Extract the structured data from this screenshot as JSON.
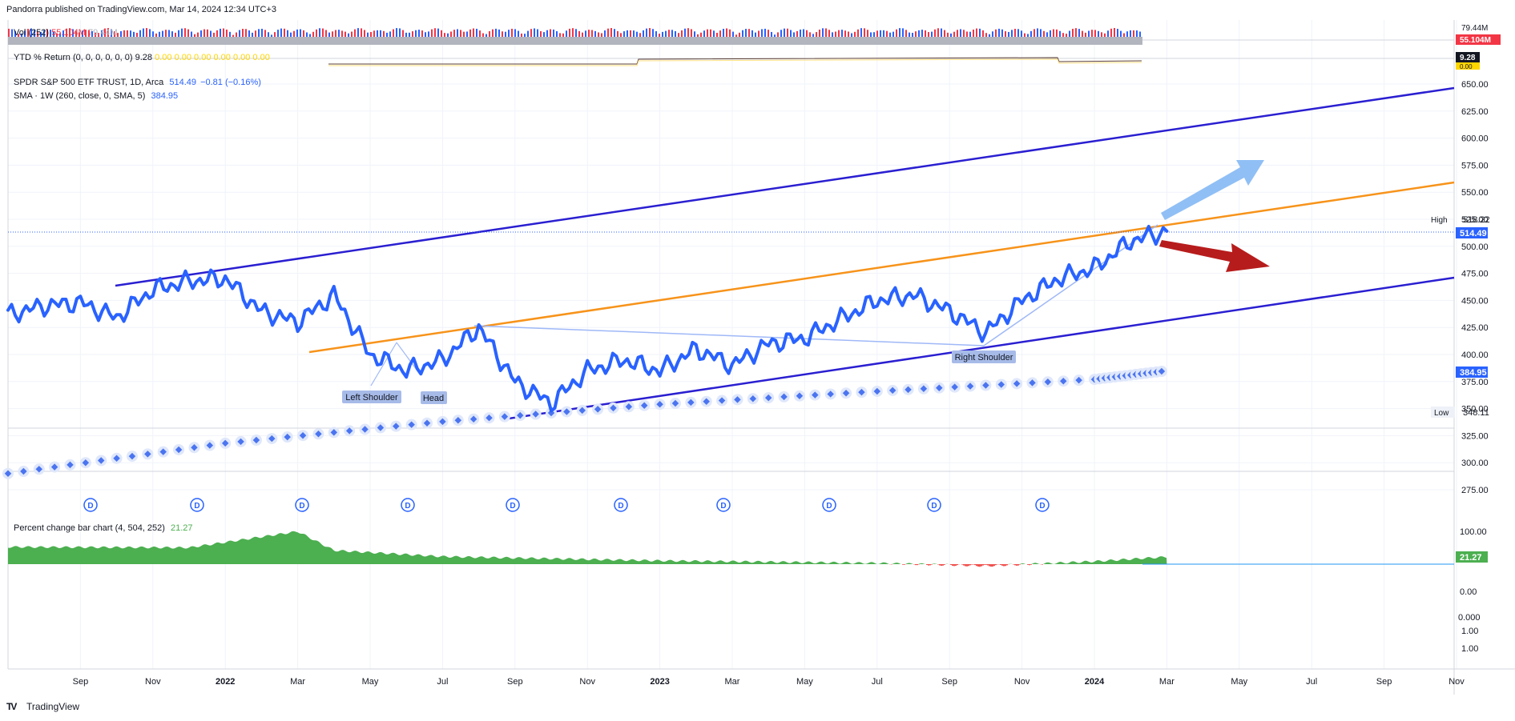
{
  "header": {
    "publisher": "Pandorra published on TradingView.com, Mar 14, 2024 12:34 UTC+3"
  },
  "footer": {
    "brand": "TradingView",
    "logo_text": "TV"
  },
  "panes": {
    "volume": {
      "label": "Vol (252)",
      "value1": "55.104M",
      "value2": "79.44M",
      "axis_top": "79.44M",
      "axis_val": "55.104M",
      "color_up": "#2962ff",
      "color_down": "#f23645"
    },
    "ytd": {
      "label": "YTD % Return (0, 0, 0, 0, 0, 0)",
      "value": "9.28",
      "zeros": "0.00  0.00  0.00  0.00  0.00  0.00",
      "axis_val": "9.28",
      "axis_zero": "0.00"
    },
    "main": {
      "symbol": "SPDR S&P 500 ETF TRUST, 1D, Arca",
      "price": "514.49",
      "change": "−0.81 (−0.16%)",
      "sma_label": "SMA · 1W (260, close, 0, SMA, 5)",
      "sma_value": "384.95",
      "high_label": "High",
      "high_value": "518.22",
      "low_label": "Low",
      "low_value": "348.11",
      "price_tag": "514.49",
      "sma_tag": "384.95",
      "dividend_marker": "D",
      "annotations": {
        "left_shoulder": "Left Shoulder",
        "head": "Head",
        "right_shoulder": "Right Shoulder"
      },
      "colors": {
        "price": "#2962ff",
        "channel": "#2a1fd1",
        "orange": "#f7931a",
        "neckline": "#9fb8f7",
        "arrow_up": "#90bff5",
        "arrow_down": "#b71c1c"
      }
    },
    "pct": {
      "label": "Percent change bar chart (4, 504, 252)",
      "value": "21.27",
      "axis_100": "100.00",
      "axis_tag": "21.27",
      "color_pos": "#4caf50",
      "color_neg": "#ef5350"
    },
    "empty": {
      "ticks": [
        "0.00",
        "0.000",
        "1.00",
        "1.00"
      ]
    }
  },
  "chart_data": {
    "type": "line",
    "title": "SPDR S&P 500 ETF TRUST, 1D, Arca",
    "y_ticks": [
      650,
      625,
      600,
      575,
      550,
      525,
      500,
      475,
      450,
      425,
      400,
      375,
      350,
      325,
      300,
      275
    ],
    "ylim": [
      260,
      660
    ],
    "x_ticks": [
      "Sep",
      "Nov",
      "2022",
      "Mar",
      "May",
      "Jul",
      "Sep",
      "Nov",
      "2023",
      "Mar",
      "May",
      "Jul",
      "Sep",
      "Nov",
      "2024",
      "Mar",
      "May",
      "Jul",
      "Sep",
      "Nov"
    ],
    "series": [
      {
        "name": "SPDR S&P 500 ETF TRUST",
        "x": [
          "Jul 2021",
          "Aug 2021",
          "Sep 2021",
          "Oct 2021",
          "Nov 2021",
          "Dec 2021",
          "Jan 2022",
          "Feb 2022",
          "Mar 2022",
          "Apr 2022",
          "May 2022",
          "Jun 2022",
          "Jul 2022",
          "Aug 2022",
          "Sep 2022",
          "Oct 2022",
          "Nov 2022",
          "Dec 2022",
          "Jan 2023",
          "Feb 2023",
          "Mar 2023",
          "Apr 2023",
          "May 2023",
          "Jun 2023",
          "Jul 2023",
          "Aug 2023",
          "Sep 2023",
          "Oct 2023",
          "Nov 2023",
          "Dec 2023",
          "Jan 2024",
          "Feb 2024",
          "Mar 2024"
        ],
        "values": [
          437,
          445,
          448,
          434,
          460,
          468,
          470,
          440,
          430,
          455,
          400,
          385,
          395,
          425,
          375,
          355,
          385,
          395,
          385,
          405,
          390,
          410,
          415,
          433,
          450,
          455,
          440,
          420,
          450,
          470,
          480,
          505,
          514
        ]
      },
      {
        "name": "SMA · 1W (260, close, 0, SMA, 5)",
        "x": [
          "Jul 2021",
          "Jan 2022",
          "Jul 2022",
          "Jan 2023",
          "Jul 2023",
          "Jan 2024",
          "Mar 2024"
        ],
        "values": [
          290,
          318,
          338,
          354,
          366,
          377,
          385
        ]
      }
    ],
    "pct_change": {
      "x": [
        "Jul 2021",
        "Dec 2021",
        "Mar 2022",
        "Apr 2022",
        "Jul 2022",
        "Jan 2023",
        "Jul 2023",
        "Oct 2023",
        "Jan 2024",
        "Mar 2024"
      ],
      "values": [
        50,
        48,
        95,
        40,
        22,
        10,
        3,
        -5,
        8,
        21.27
      ]
    },
    "grid": true
  }
}
